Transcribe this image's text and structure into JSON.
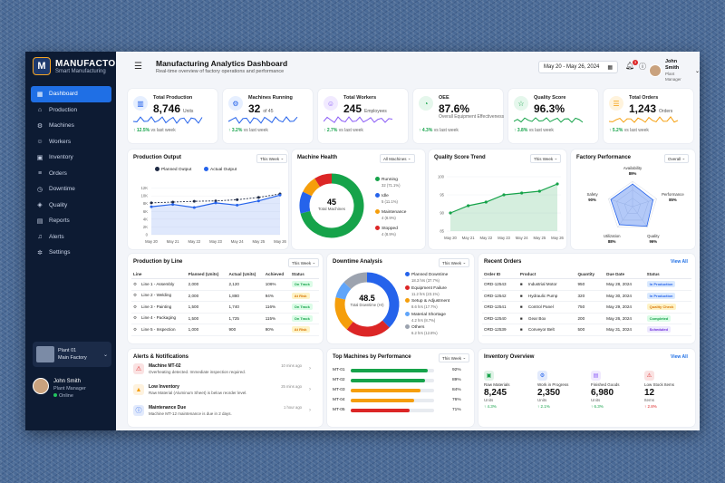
{
  "sidebar": {
    "brand": "MANUFACTO",
    "brand_sub": "Smart Manufacturing",
    "items": [
      {
        "label": "Dashboard",
        "icon": "grid-icon"
      },
      {
        "label": "Production",
        "icon": "factory-icon"
      },
      {
        "label": "Machines",
        "icon": "machine-icon"
      },
      {
        "label": "Workers",
        "icon": "users-icon"
      },
      {
        "label": "Inventory",
        "icon": "box-icon"
      },
      {
        "label": "Orders",
        "icon": "cart-icon"
      },
      {
        "label": "Downtime",
        "icon": "clock-icon"
      },
      {
        "label": "Quality",
        "icon": "shield-icon"
      },
      {
        "label": "Reports",
        "icon": "report-icon"
      },
      {
        "label": "Alerts",
        "icon": "bell-icon"
      },
      {
        "label": "Settings",
        "icon": "gear-icon"
      }
    ],
    "plant": {
      "name": "Plant 01",
      "location": "Main Factory"
    },
    "user": {
      "name": "John Smith",
      "role": "Plant Manager",
      "status": "Online"
    }
  },
  "header": {
    "title": "Manufacturing Analytics Dashboard",
    "subtitle": "Real-time overview of factory operations and performance",
    "date_range": "May 20 - May 26, 2024",
    "notif_count": "3",
    "user_name": "John Smith",
    "user_role": "Plant Manager"
  },
  "kpis": [
    {
      "label": "Total Production",
      "value": "8,746",
      "unit": "Units",
      "change": "↑ 12.5%",
      "suffix": "vs last week",
      "color": "#2563eb"
    },
    {
      "label": "Machines Running",
      "value": "32",
      "unit": "of 45",
      "change": "↑ 3.2%",
      "suffix": "vs last week",
      "color": "#2563eb"
    },
    {
      "label": "Total Workers",
      "value": "245",
      "unit": "Employees",
      "change": "↑ 2.7%",
      "suffix": "vs last week",
      "color": "#8b5cf6"
    },
    {
      "label": "OEE",
      "value": "87.6%",
      "unit": "",
      "desc": "Overall Equipment Effectiveness",
      "change": "↑ 4.3%",
      "suffix": "vs last week",
      "color": "#16a34a"
    },
    {
      "label": "Quality Score",
      "value": "96.3%",
      "unit": "",
      "change": "↑ 3.8%",
      "suffix": "vs last week",
      "color": "#16a34a"
    },
    {
      "label": "Total Orders",
      "value": "1,243",
      "unit": "Orders",
      "change": "↑ 5.2%",
      "suffix": "vs last week",
      "color": "#f59e0b"
    }
  ],
  "production_output": {
    "title": "Production Output",
    "filter": "This Week",
    "legend": [
      "Planned Output",
      "Actual Output"
    ]
  },
  "machine_health": {
    "title": "Machine Health",
    "filter": "All Machines",
    "center_value": "45",
    "center_label": "Total Machines",
    "items": [
      {
        "label": "Running",
        "sub": "32 (71.1%)",
        "value": 32,
        "color": "#16a34a"
      },
      {
        "label": "Idle",
        "sub": "5 (11.1%)",
        "value": 5,
        "color": "#2563eb"
      },
      {
        "label": "Maintenance",
        "sub": "4 (8.9%)",
        "value": 4,
        "color": "#f59e0b"
      },
      {
        "label": "Stopped",
        "sub": "4 (8.9%)",
        "value": 4,
        "color": "#dc2626"
      }
    ]
  },
  "quality_trend": {
    "title": "Quality Score Trend",
    "filter": "This Week"
  },
  "factory_perf": {
    "title": "Factory Performance",
    "filter": "Overall",
    "axes": [
      {
        "label": "Availability",
        "value": "89%"
      },
      {
        "label": "Performance",
        "value": "85%"
      },
      {
        "label": "Quality",
        "value": "96%"
      },
      {
        "label": "Utilization",
        "value": "88%"
      },
      {
        "label": "Safety",
        "value": "90%"
      }
    ]
  },
  "production_by_line": {
    "title": "Production by Line",
    "filter": "This Week",
    "headers": [
      "Line",
      "Planned (Units)",
      "Actual (Units)",
      "Achieved",
      "Status"
    ],
    "rows": [
      [
        "Line 1 - Assembly",
        "2,000",
        "2,120",
        "106%",
        "On Track"
      ],
      [
        "Line 2 - Welding",
        "2,000",
        "1,880",
        "94%",
        "At Risk"
      ],
      [
        "Line 3 - Painting",
        "1,500",
        "1,740",
        "116%",
        "On Track"
      ],
      [
        "Line 4 - Packaging",
        "1,500",
        "1,725",
        "115%",
        "On Track"
      ],
      [
        "Line 5 - Inspection",
        "1,000",
        "900",
        "90%",
        "At Risk"
      ]
    ]
  },
  "downtime": {
    "title": "Downtime Analysis",
    "filter": "This Week",
    "center_value": "48.5",
    "center_label": "Total Downtime (Hr)",
    "items": [
      {
        "label": "Planned Downtime",
        "sub": "18.3 hrs (37.7%)",
        "value": 18.3,
        "color": "#2563eb"
      },
      {
        "label": "Equipment Failure",
        "sub": "11.2 hrs (23.1%)",
        "value": 11.2,
        "color": "#dc2626"
      },
      {
        "label": "Setup & Adjustment",
        "sub": "8.6 hrs (17.7%)",
        "value": 8.6,
        "color": "#f59e0b"
      },
      {
        "label": "Material Shortage",
        "sub": "4.2 hrs (8.7%)",
        "value": 4.2,
        "color": "#60a5fa"
      },
      {
        "label": "Others",
        "sub": "6.2 hrs (12.8%)",
        "value": 6.2,
        "color": "#9ca3af"
      }
    ]
  },
  "recent_orders": {
    "title": "Recent Orders",
    "view_all": "View All",
    "headers": [
      "Order ID",
      "Product",
      "Quantity",
      "Due Date",
      "Status"
    ],
    "rows": [
      [
        "ORD-12543",
        "Industrial Motor",
        "950",
        "May 28, 2024",
        "In Production"
      ],
      [
        "ORD-12542",
        "Hydraulic Pump",
        "320",
        "May 30, 2024",
        "In Production"
      ],
      [
        "ORD-12541",
        "Control Panel",
        "750",
        "May 29, 2024",
        "Quality Check"
      ],
      [
        "ORD-12540",
        "Gear Box",
        "200",
        "May 26, 2024",
        "Completed"
      ],
      [
        "ORD-12539",
        "Conveyor Belt",
        "500",
        "May 31, 2024",
        "Scheduled"
      ]
    ]
  },
  "alerts": {
    "title": "Alerts & Notifications",
    "items": [
      {
        "title": "Machine MT-02",
        "desc": "Overheating detected. Immediate inspection required.",
        "time": "10 mins ago",
        "icon": "warning-icon",
        "color": "#dc2626"
      },
      {
        "title": "Low Inventory",
        "desc": "Raw Material (Aluminum Sheet) is below reorder level.",
        "time": "25 mins ago",
        "icon": "triangle-icon",
        "color": "#f59e0b"
      },
      {
        "title": "Maintenance Due",
        "desc": "Machine MT-12 maintenance is due in 2 days.",
        "time": "1 hour ago",
        "icon": "info-icon",
        "color": "#2563eb"
      }
    ]
  },
  "top_machines": {
    "title": "Top Machines by Performance",
    "filter": "This Week",
    "items": [
      {
        "id": "MT-01",
        "value": 92,
        "label": "92%",
        "color": "#16a34a"
      },
      {
        "id": "MT-02",
        "value": 89,
        "label": "89%",
        "color": "#16a34a"
      },
      {
        "id": "MT-03",
        "value": 84,
        "label": "84%",
        "color": "#f59e0b"
      },
      {
        "id": "MT-04",
        "value": 76,
        "label": "76%",
        "color": "#f59e0b"
      },
      {
        "id": "MT-05",
        "value": 71,
        "label": "71%",
        "color": "#dc2626"
      }
    ]
  },
  "inventory": {
    "title": "Inventory Overview",
    "view_all": "View All",
    "items": [
      {
        "label": "Raw Materials",
        "value": "8,245",
        "unit": "Units",
        "change": "↑ 4.3%",
        "color": "#16a34a"
      },
      {
        "label": "Work in Progress",
        "value": "2,350",
        "unit": "Units",
        "change": "↑ 2.1%",
        "color": "#2563eb"
      },
      {
        "label": "Finished Goods",
        "value": "6,980",
        "unit": "Units",
        "change": "↑ 6.3%",
        "color": "#8b5cf6"
      },
      {
        "label": "Low Stock Items",
        "value": "12",
        "unit": "Items",
        "change": "↑ 2.8%",
        "color": "#dc2626"
      }
    ]
  },
  "chart_data": [
    {
      "type": "line",
      "title": "Production Output",
      "x": [
        "May 20",
        "May 21",
        "May 22",
        "May 23",
        "May 24",
        "May 25",
        "May 26"
      ],
      "ylim": [
        0,
        14000
      ],
      "yticks": [
        "0",
        "2K",
        "4K",
        "6K",
        "8K",
        "10K",
        "12K"
      ],
      "series": [
        {
          "name": "Planned Output",
          "values": [
            8200,
            8400,
            8600,
            8700,
            9000,
            9600,
            10500
          ],
          "color": "#1f2a44"
        },
        {
          "name": "Actual Output",
          "values": [
            7200,
            7800,
            7000,
            8200,
            7600,
            8700,
            10200
          ],
          "color": "#2563eb"
        }
      ]
    },
    {
      "type": "area",
      "title": "Quality Score Trend",
      "x": [
        "May 20",
        "May 21",
        "May 22",
        "May 23",
        "May 24",
        "May 25",
        "May 26"
      ],
      "ylim": [
        85,
        100
      ],
      "yticks": [
        "85",
        "90",
        "95",
        "100"
      ],
      "series": [
        {
          "name": "",
          "values": [
            90,
            92,
            93,
            95,
            95.5,
            96,
            98
          ],
          "color": "#16a34a"
        }
      ]
    }
  ]
}
